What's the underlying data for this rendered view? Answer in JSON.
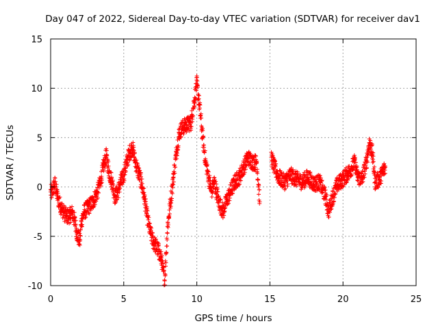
{
  "chart_data": {
    "type": "scatter",
    "title": "Day 047 of 2022, Sidereal Day-to-day VTEC variation (SDTVAR) for receiver dav1",
    "xlabel": "GPS time / hours",
    "ylabel": "SDTVAR / TECUs",
    "xlim": [
      0,
      25
    ],
    "ylim": [
      -10,
      15
    ],
    "xticks": [
      "0",
      "5",
      "10",
      "15",
      "20",
      "25"
    ],
    "yticks": [
      "-10",
      "-5",
      "0",
      "5",
      "10",
      "15"
    ],
    "grid": true,
    "marker": "+",
    "color": "#ff0000",
    "series": [
      {
        "name": "SDTVAR",
        "keypoints": [
          [
            0.0,
            -0.5
          ],
          [
            0.1,
            -0.6
          ],
          [
            0.2,
            0.0
          ],
          [
            0.3,
            0.3
          ],
          [
            0.4,
            -0.5
          ],
          [
            0.5,
            -1.2
          ],
          [
            0.7,
            -2.0
          ],
          [
            0.9,
            -2.6
          ],
          [
            1.1,
            -3.0
          ],
          [
            1.3,
            -2.9
          ],
          [
            1.5,
            -2.6
          ],
          [
            1.7,
            -3.8
          ],
          [
            1.8,
            -4.8
          ],
          [
            2.0,
            -5.5
          ],
          [
            2.1,
            -3.5
          ],
          [
            2.3,
            -2.5
          ],
          [
            2.6,
            -2.0
          ],
          [
            2.9,
            -1.5
          ],
          [
            3.2,
            -0.5
          ],
          [
            3.4,
            0.5
          ],
          [
            3.6,
            2.0
          ],
          [
            3.8,
            3.2
          ],
          [
            4.0,
            1.5
          ],
          [
            4.2,
            0.5
          ],
          [
            4.4,
            -1.0
          ],
          [
            4.6,
            -0.5
          ],
          [
            4.8,
            0.5
          ],
          [
            5.0,
            1.2
          ],
          [
            5.2,
            2.5
          ],
          [
            5.4,
            3.5
          ],
          [
            5.6,
            4.0
          ],
          [
            5.8,
            2.5
          ],
          [
            6.0,
            1.5
          ],
          [
            6.2,
            0.5
          ],
          [
            6.4,
            -1.0
          ],
          [
            6.6,
            -3.0
          ],
          [
            6.8,
            -4.5
          ],
          [
            7.0,
            -5.5
          ],
          [
            7.2,
            -6.0
          ],
          [
            7.4,
            -6.5
          ],
          [
            7.6,
            -7.5
          ],
          [
            7.8,
            -9.5
          ],
          [
            8.0,
            -4.0
          ],
          [
            8.2,
            -1.5
          ],
          [
            8.4,
            1.0
          ],
          [
            8.6,
            3.5
          ],
          [
            8.8,
            5.5
          ],
          [
            9.0,
            6.0
          ],
          [
            9.3,
            6.3
          ],
          [
            9.6,
            6.5
          ],
          [
            9.8,
            8.5
          ],
          [
            10.0,
            10.5
          ],
          [
            10.2,
            8.0
          ],
          [
            10.4,
            5.0
          ],
          [
            10.6,
            2.5
          ],
          [
            10.8,
            1.0
          ],
          [
            11.0,
            -0.5
          ],
          [
            11.2,
            0.5
          ],
          [
            11.5,
            -1.5
          ],
          [
            11.8,
            -2.5
          ],
          [
            12.0,
            -1.5
          ],
          [
            12.3,
            -0.5
          ],
          [
            12.6,
            0.5
          ],
          [
            12.9,
            1.0
          ],
          [
            13.2,
            2.0
          ],
          [
            13.5,
            3.0
          ],
          [
            13.8,
            2.5
          ],
          [
            14.1,
            2.5
          ],
          [
            14.3,
            -1.5
          ],
          [
            15.1,
            3.0
          ],
          [
            15.3,
            2.0
          ],
          [
            15.6,
            1.0
          ],
          [
            16.0,
            0.5
          ],
          [
            16.4,
            1.2
          ],
          [
            16.8,
            0.8
          ],
          [
            17.2,
            0.5
          ],
          [
            17.6,
            1.0
          ],
          [
            18.0,
            0.3
          ],
          [
            18.4,
            0.5
          ],
          [
            18.8,
            -1.0
          ],
          [
            19.0,
            -2.5
          ],
          [
            19.3,
            -1.0
          ],
          [
            19.6,
            0.2
          ],
          [
            20.0,
            0.8
          ],
          [
            20.4,
            1.5
          ],
          [
            20.8,
            2.5
          ],
          [
            21.0,
            1.0
          ],
          [
            21.3,
            0.8
          ],
          [
            21.6,
            2.5
          ],
          [
            21.8,
            4.5
          ],
          [
            22.0,
            3.5
          ],
          [
            22.2,
            0.5
          ],
          [
            22.5,
            0.8
          ],
          [
            22.7,
            1.5
          ],
          [
            22.9,
            2.0
          ]
        ]
      }
    ]
  }
}
